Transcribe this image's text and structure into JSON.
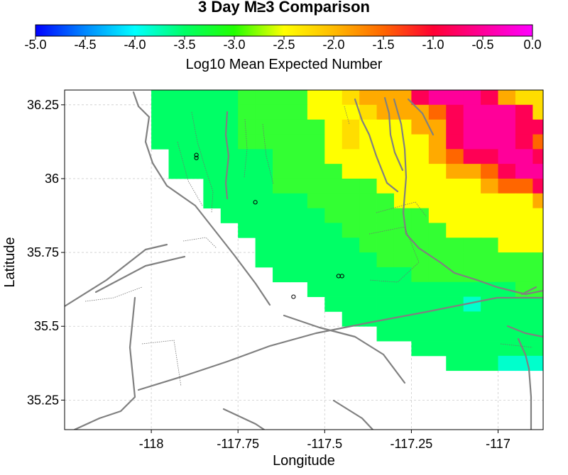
{
  "chart_data": {
    "type": "heatmap",
    "title": "3 Day M≥3 Comparison",
    "colorbar": {
      "label": "Log10 Mean Expected Number",
      "ticks": [
        "-5.0",
        "-4.5",
        "-4.0",
        "-3.5",
        "-3.0",
        "-2.5",
        "-2.0",
        "-1.5",
        "-1.0",
        "-0.5",
        "0.0"
      ],
      "range": [
        -5.0,
        0.0
      ],
      "colors": [
        "#0000ff",
        "#0088ff",
        "#00ffff",
        "#00ff66",
        "#22ff00",
        "#ffff00",
        "#ffbb00",
        "#ff6600",
        "#ff0033",
        "#ff0099",
        "#ff00ff"
      ]
    },
    "xlabel": "Longitude",
    "ylabel": "Latitude",
    "xticks": [
      "-118",
      "-117.75",
      "-117.5",
      "-117.25",
      "-117"
    ],
    "yticks": [
      "36.25",
      "36",
      "35.75",
      "35.5",
      "35.25"
    ],
    "xlim": [
      -118.25,
      -116.87
    ],
    "ylim": [
      35.15,
      36.3
    ],
    "grid": true,
    "cell_size": 0.05,
    "grid_origin": {
      "lon": -118.25,
      "lat": 35.15
    },
    "rows": [
      "..........................................",
      "..........................................",
      "...........aaabbaabbbbaaaadd..............",
      "...........aabbcccbbbbbbaaddd.............",
      "...........bbbfhkbbbbbbaaaad..............",
      "......aaaabbbfhkkhbbbbbbbaaaa.............",
      "......aaaaabbfhkkhbebbbbbaa.b.............",
      "......aaaaabbffgdddbeeeeebbbb.bbb.........",
      "......aaaabbbbffgeeeefffgggbbbbbb.........",
      "....aaabbbbbbeffffeeeeefgfeeeebbbb........",
      "....aaaaabbbbfgfeeeffffggggeeebbbbb.......",
      "....aaaaabbbbefgfkkkmmmfffgffeeebbbbaaa...",
      "....aaaaabbbbeeggkkkhkmmgfeefeeebbbbaaa...",
      ".....aaaaabbbbeefgggkmmmkgffeebbbbbaaab...",
      ".....aaaaabbbbeeefggghkmmmkffeebbbbbaaab..",
      ".....aaaaabbbbbefeeeggkmmmkkgffeeebbbbaab.",
      ".....aaaaabbbbbefeeeegkmmmkhgfffeeebbbbbb.",
      "......aaaaaabbbeeeeeeghkkmmkhgfffebbbbbab.",
      "......aaaaaabbbbeeeeeegghkmmkhhggfeebbbbba",
      "........aaaabbbbbbeeeeeeghhkhhgfeebbbbbaaa",
      "........aaaaaabbbbbeeeeeeeeggfffffeebbbaaa",
      ".........aaaaaabbbbbbeeeeeeeeeeffeeebbbaa.",
      "..........aaaaaabbbbbbeeeeeeeeeeeeebbaaa..",
      "...........aaaaaabbbbbbbbeeeeebbbbbbbaa...",
      "...........aaaaaaabbbbbbbbbbbbbbbbbbaa....",
      "............aaaaaaaabbbbbbbbbbbbbbaaa.....",
      "..............aaaaaaaaaaaabbbbbbaa........",
      "...............aaaaaaaacaaaaaaaaa.........",
      "................aaaaaaaaaaaaaaaaa.........",
      "..................aaaaaaaaaaaaa...........",
      "....................aaaaaaaaaa............",
      "......................aaacccc.............",
      "..........................................",
      "..........................................",
      "..........................................",
      ".........................................."
    ],
    "palette": {
      "a": "#00ff66",
      "b": "#33ff33",
      "c": "#00ffcc",
      "d": "#00eeff",
      "e": "#ffff00",
      "f": "#ffdd00",
      "g": "#ffaa00",
      "h": "#ff6600",
      "k": "#ff0055",
      "m": "#ff0099"
    },
    "events": [
      {
        "lon": -117.87,
        "lat": 36.08
      },
      {
        "lon": -117.87,
        "lat": 36.07
      },
      {
        "lon": -117.7,
        "lat": 35.92
      },
      {
        "lon": -117.59,
        "lat": 35.6
      },
      {
        "lon": -117.46,
        "lat": 35.67
      },
      {
        "lon": -117.45,
        "lat": 35.67
      }
    ]
  }
}
